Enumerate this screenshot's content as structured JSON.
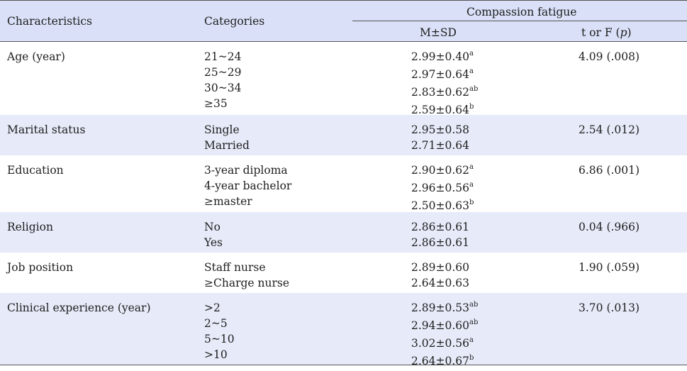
{
  "header": {
    "characteristics": "Characteristics",
    "categories": "Categories",
    "group_label": "Compassion fatigue",
    "msd": "M±SD",
    "t_or_f_prefix": "t or F (",
    "t_or_f_p": "p",
    "t_or_f_suffix": ")"
  },
  "rows": [
    {
      "characteristic": "Age (year)",
      "categories": [
        "21~24",
        "25~29",
        "30~34",
        "≥35"
      ],
      "msd": [
        {
          "value": "2.99±0.40",
          "sup": "a"
        },
        {
          "value": "2.97±0.64",
          "sup": "a"
        },
        {
          "value": "2.83±0.62",
          "sup": "ab"
        },
        {
          "value": "2.59±0.64",
          "sup": "b"
        }
      ],
      "stat": "4.09 (.008)"
    },
    {
      "characteristic": "Marital status",
      "categories": [
        "Single",
        "Married"
      ],
      "msd": [
        {
          "value": "2.95±0.58",
          "sup": ""
        },
        {
          "value": "2.71±0.64",
          "sup": ""
        }
      ],
      "stat": "2.54 (.012)"
    },
    {
      "characteristic": "Education",
      "categories": [
        "3-year diploma",
        "4-year bachelor",
        "≥master"
      ],
      "msd": [
        {
          "value": "2.90±0.62",
          "sup": "a"
        },
        {
          "value": "2.96±0.56",
          "sup": "a"
        },
        {
          "value": "2.50±0.63",
          "sup": "b"
        }
      ],
      "stat": "6.86 (.001)"
    },
    {
      "characteristic": "Religion",
      "categories": [
        "No",
        "Yes"
      ],
      "msd": [
        {
          "value": "2.86±0.61",
          "sup": ""
        },
        {
          "value": "2.86±0.61",
          "sup": ""
        }
      ],
      "stat": "0.04 (.966)"
    },
    {
      "characteristic": "Job position",
      "categories": [
        "Staff nurse",
        "≥Charge nurse"
      ],
      "msd": [
        {
          "value": "2.89±0.60",
          "sup": ""
        },
        {
          "value": "2.64±0.63",
          "sup": ""
        }
      ],
      "stat": "1.90 (.059)"
    },
    {
      "characteristic": "Clinical experience (year)",
      "categories": [
        ">2",
        "2~5",
        "5~10",
        ">10"
      ],
      "msd": [
        {
          "value": "2.89±0.53",
          "sup": "ab"
        },
        {
          "value": "2.94±0.60",
          "sup": "ab"
        },
        {
          "value": "3.02±0.56",
          "sup": "a"
        },
        {
          "value": "2.64±0.67",
          "sup": "b"
        }
      ],
      "stat": "3.70 (.013)"
    }
  ]
}
